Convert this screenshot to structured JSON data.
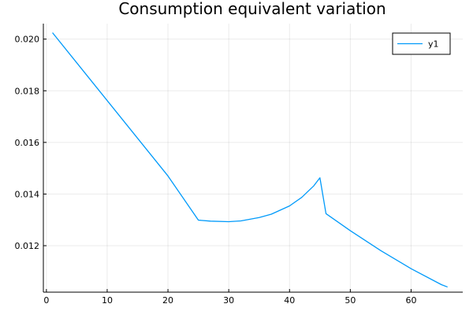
{
  "chart_data": {
    "type": "line",
    "title": "Consumption equivalent variation",
    "xlabel": "",
    "ylabel": "",
    "xlim": [
      -0.5,
      68.5
    ],
    "ylim": [
      0.0102,
      0.0206
    ],
    "x_ticks": [
      0,
      10,
      20,
      30,
      40,
      50,
      60
    ],
    "y_ticks": [
      0.012,
      0.014,
      0.016,
      0.018,
      0.02
    ],
    "y_tick_labels": [
      "0.012",
      "0.014",
      "0.016",
      "0.018",
      "0.020"
    ],
    "grid": true,
    "legend_position": "top-right",
    "series": [
      {
        "name": "y1",
        "color": "#009AFA",
        "x": [
          1,
          5,
          10,
          15,
          20,
          25,
          27,
          30,
          32,
          35,
          37,
          40,
          42,
          44,
          45,
          46,
          50,
          55,
          60,
          65,
          66
        ],
        "y": [
          0.02025,
          0.01908,
          0.01762,
          0.01616,
          0.0147,
          0.01299,
          0.01295,
          0.01293,
          0.01296,
          0.01309,
          0.01322,
          0.01354,
          0.01387,
          0.01432,
          0.01463,
          0.01324,
          0.01258,
          0.01181,
          0.01111,
          0.01049,
          0.0104
        ]
      }
    ]
  }
}
